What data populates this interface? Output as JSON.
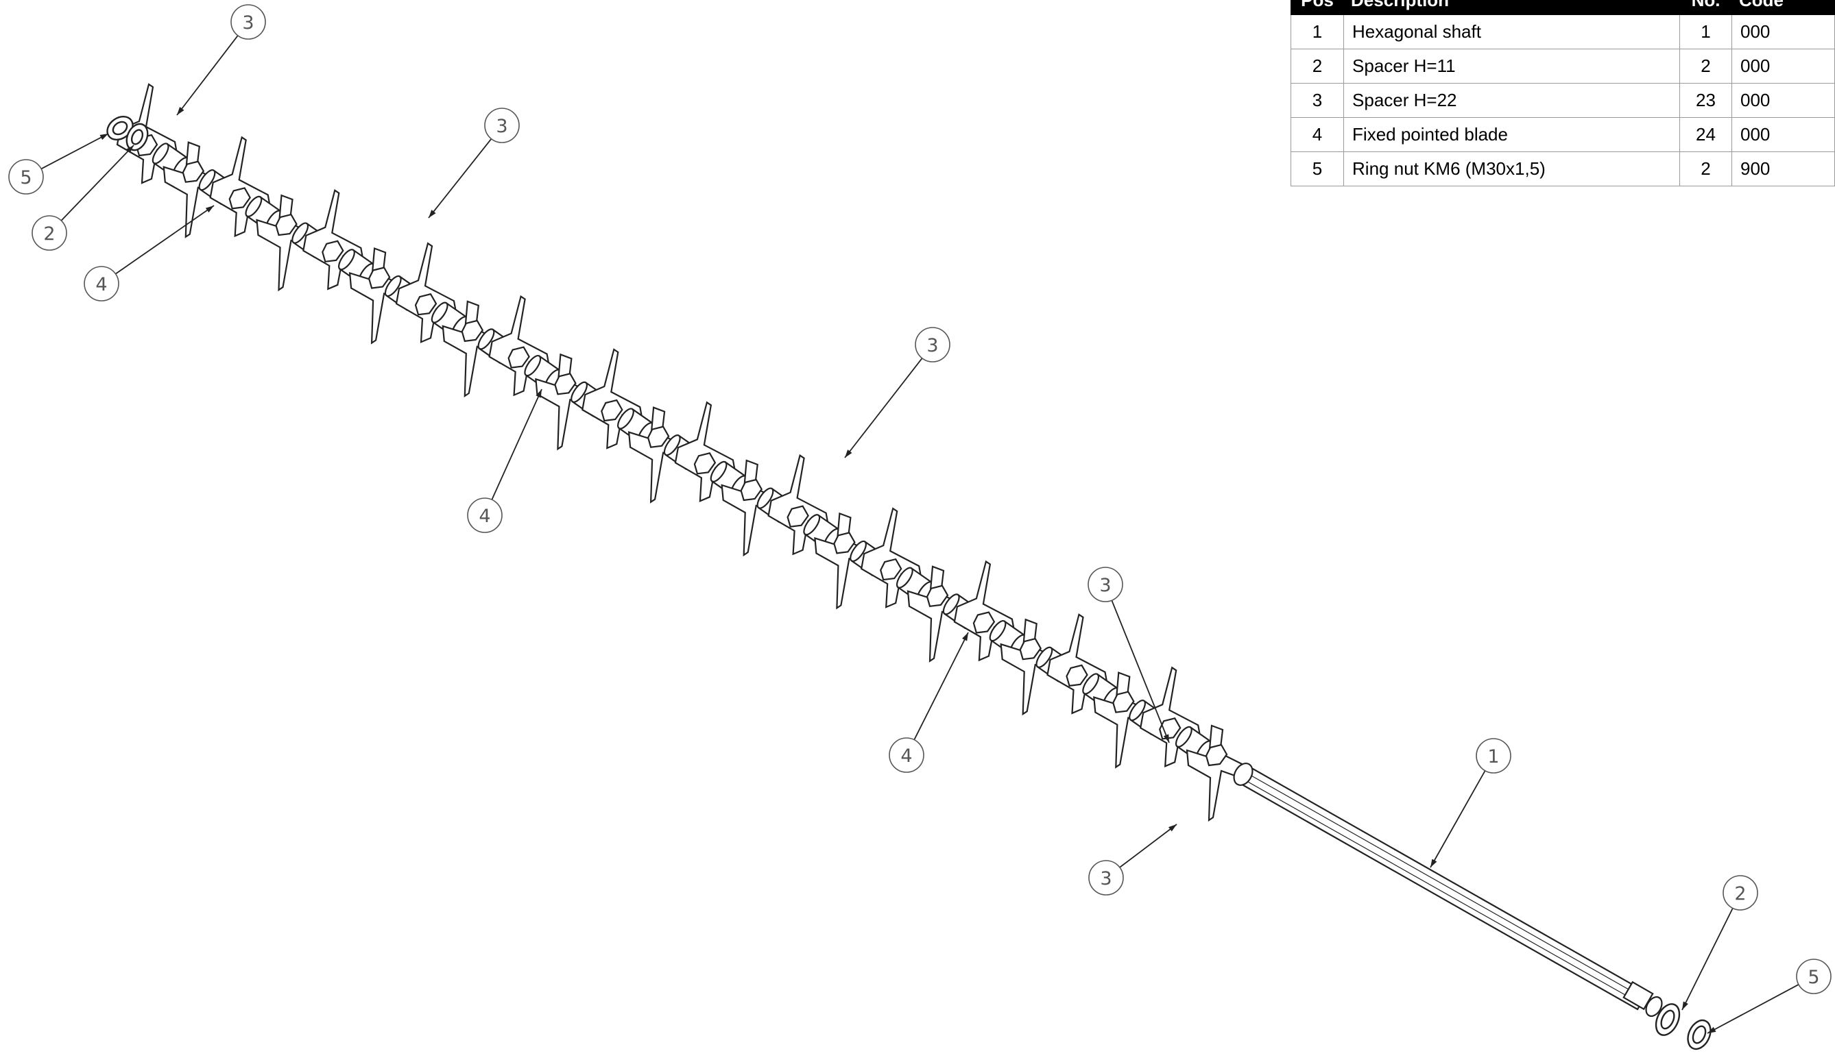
{
  "table": {
    "headers": {
      "pos": "Pos",
      "description": "Description",
      "no": "No.",
      "code": "Code"
    },
    "rows": [
      {
        "pos": "1",
        "description": "Hexagonal shaft",
        "no": "1",
        "code": "000"
      },
      {
        "pos": "2",
        "description": "Spacer H=11",
        "no": "2",
        "code": "000"
      },
      {
        "pos": "3",
        "description": "Spacer H=22",
        "no": "23",
        "code": "000"
      },
      {
        "pos": "4",
        "description": "Fixed pointed blade",
        "no": "24",
        "code": "000"
      },
      {
        "pos": "5",
        "description": "Ring nut KM6 (M30x1,5)",
        "no": "2",
        "code": "900"
      }
    ]
  },
  "callouts": [
    "3",
    "5",
    "2",
    "4",
    "3",
    "3",
    "4",
    "3",
    "4",
    "3",
    "1",
    "2",
    "5"
  ]
}
